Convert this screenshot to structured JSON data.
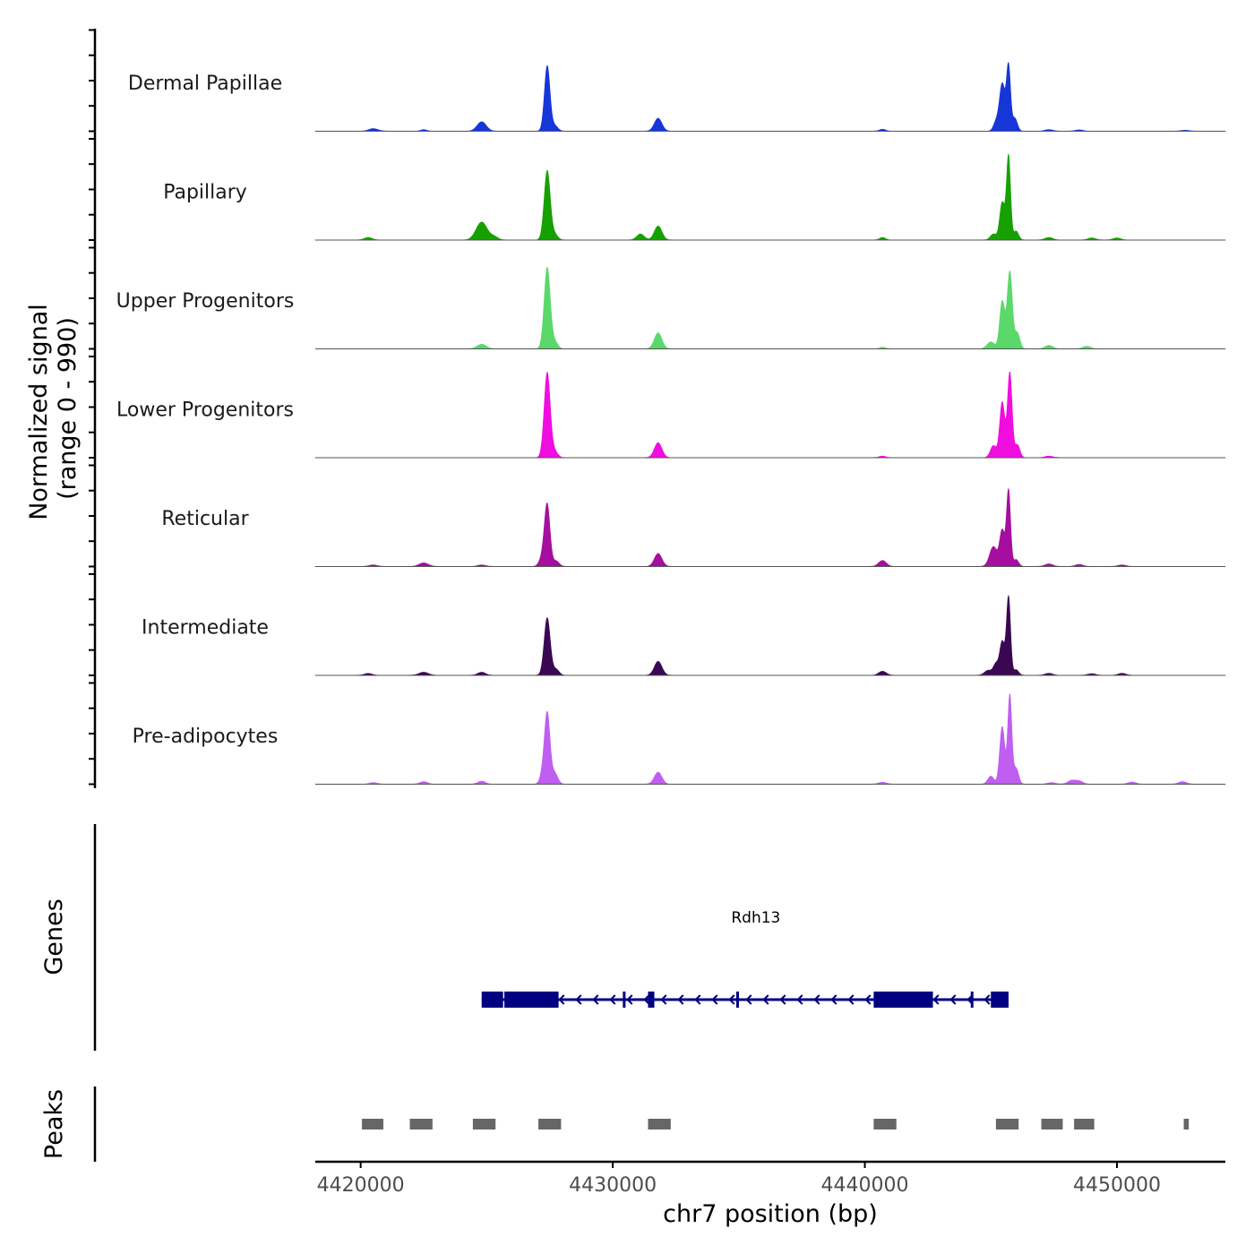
{
  "chart_data": {
    "type": "area",
    "title": "",
    "chromosome": "chr7",
    "xlabel": "chr7 position (bp)",
    "ylabel_line1": "Normalized signal",
    "ylabel_line2": "(range 0 - 990)",
    "xlim": [
      4418200,
      4454300
    ],
    "ylim": [
      0,
      990
    ],
    "x_ticks": [
      4420000,
      4430000,
      4440000,
      4450000
    ],
    "x_tick_labels": [
      "4420000",
      "4430000",
      "4440000",
      "4450000"
    ],
    "series": [
      {
        "name": "Dermal Papillae",
        "color": "#1736d8",
        "peaks": [
          [
            4420500,
            25,
            180
          ],
          [
            4422500,
            15,
            120
          ],
          [
            4424800,
            95,
            180
          ],
          [
            4427400,
            660,
            110
          ],
          [
            4427700,
            55,
            120
          ],
          [
            4431800,
            130,
            150
          ],
          [
            4440700,
            18,
            120
          ],
          [
            4445200,
            90,
            100
          ],
          [
            4445450,
            480,
            110
          ],
          [
            4445700,
            650,
            80
          ],
          [
            4445950,
            130,
            100
          ],
          [
            4447300,
            15,
            150
          ],
          [
            4448500,
            12,
            150
          ],
          [
            4452700,
            8,
            150
          ]
        ]
      },
      {
        "name": "Papillary",
        "color": "#17a100",
        "peaks": [
          [
            4420300,
            25,
            150
          ],
          [
            4424800,
            180,
            220
          ],
          [
            4425300,
            30,
            150
          ],
          [
            4427400,
            700,
            120
          ],
          [
            4427700,
            55,
            120
          ],
          [
            4431100,
            60,
            150
          ],
          [
            4431800,
            140,
            150
          ],
          [
            4440700,
            25,
            120
          ],
          [
            4445100,
            60,
            120
          ],
          [
            4445450,
            380,
            100
          ],
          [
            4445700,
            850,
            80
          ],
          [
            4446000,
            90,
            100
          ],
          [
            4447300,
            25,
            150
          ],
          [
            4449000,
            20,
            150
          ],
          [
            4450000,
            20,
            150
          ]
        ]
      },
      {
        "name": "Upper Progenitors",
        "color": "#5bd86a",
        "peaks": [
          [
            4424800,
            45,
            180
          ],
          [
            4427400,
            820,
            120
          ],
          [
            4427700,
            70,
            120
          ],
          [
            4431800,
            160,
            150
          ],
          [
            4440700,
            15,
            120
          ],
          [
            4445000,
            70,
            150
          ],
          [
            4445450,
            480,
            100
          ],
          [
            4445750,
            780,
            100
          ],
          [
            4446050,
            160,
            100
          ],
          [
            4447300,
            35,
            150
          ],
          [
            4448800,
            25,
            150
          ]
        ]
      },
      {
        "name": "Lower Progenitors",
        "color": "#f00ddf",
        "peaks": [
          [
            4427400,
            860,
            120
          ],
          [
            4427700,
            60,
            120
          ],
          [
            4431800,
            150,
            150
          ],
          [
            4440700,
            15,
            120
          ],
          [
            4445100,
            120,
            120
          ],
          [
            4445450,
            560,
            100
          ],
          [
            4445750,
            860,
            90
          ],
          [
            4446050,
            130,
            100
          ],
          [
            4447300,
            15,
            150
          ]
        ]
      },
      {
        "name": "Reticular",
        "color": "#a50e9e",
        "peaks": [
          [
            4420500,
            15,
            150
          ],
          [
            4422500,
            35,
            180
          ],
          [
            4424800,
            15,
            150
          ],
          [
            4427200,
            80,
            120
          ],
          [
            4427400,
            620,
            110
          ],
          [
            4427750,
            55,
            120
          ],
          [
            4431800,
            130,
            150
          ],
          [
            4440700,
            60,
            150
          ],
          [
            4445100,
            200,
            150
          ],
          [
            4445450,
            360,
            100
          ],
          [
            4445700,
            770,
            80
          ],
          [
            4446000,
            70,
            100
          ],
          [
            4447300,
            25,
            150
          ],
          [
            4448500,
            20,
            150
          ],
          [
            4450200,
            15,
            150
          ]
        ]
      },
      {
        "name": "Intermediate",
        "color": "#3a0853",
        "peaks": [
          [
            4420300,
            18,
            150
          ],
          [
            4422500,
            30,
            180
          ],
          [
            4424800,
            30,
            150
          ],
          [
            4427400,
            580,
            120
          ],
          [
            4427750,
            60,
            120
          ],
          [
            4431800,
            140,
            150
          ],
          [
            4440700,
            40,
            150
          ],
          [
            4444900,
            50,
            150
          ],
          [
            4445200,
            110,
            100
          ],
          [
            4445450,
            340,
            100
          ],
          [
            4445700,
            790,
            80
          ],
          [
            4446000,
            55,
            100
          ],
          [
            4447300,
            20,
            150
          ],
          [
            4449000,
            15,
            150
          ],
          [
            4450200,
            20,
            150
          ]
        ]
      },
      {
        "name": "Pre-adipocytes",
        "color": "#bf5ef0",
        "peaks": [
          [
            4420500,
            15,
            150
          ],
          [
            4422500,
            25,
            150
          ],
          [
            4424800,
            30,
            150
          ],
          [
            4427200,
            80,
            100
          ],
          [
            4427400,
            720,
            110
          ],
          [
            4427700,
            110,
            120
          ],
          [
            4431800,
            120,
            150
          ],
          [
            4440700,
            18,
            150
          ],
          [
            4445000,
            80,
            120
          ],
          [
            4445450,
            580,
            100
          ],
          [
            4445750,
            900,
            80
          ],
          [
            4446000,
            160,
            100
          ],
          [
            4447400,
            15,
            150
          ],
          [
            4448200,
            35,
            150
          ],
          [
            4448500,
            30,
            150
          ],
          [
            4450600,
            20,
            150
          ],
          [
            4452600,
            25,
            150
          ]
        ]
      }
    ],
    "genes": [
      {
        "name": "Rdh13",
        "start": 4424800,
        "end": 4445700,
        "strand": "-",
        "color": "#000080",
        "exons": [
          [
            4424800,
            4425650
          ],
          [
            4425700,
            4427850
          ],
          [
            4430400,
            4430450
          ],
          [
            4431400,
            4431650
          ],
          [
            4434900,
            4434950
          ],
          [
            4440350,
            4442700
          ],
          [
            4444200,
            4444250
          ],
          [
            4445000,
            4445700
          ]
        ]
      }
    ],
    "peaks_track": [
      [
        4420050,
        4420900
      ],
      [
        4421950,
        4422850
      ],
      [
        4424450,
        4425350
      ],
      [
        4427050,
        4427950
      ],
      [
        4431400,
        4432300
      ],
      [
        4440350,
        4441250
      ],
      [
        4445200,
        4446100
      ],
      [
        4447000,
        4447850
      ],
      [
        4448300,
        4449100
      ],
      [
        4452650,
        4452850
      ]
    ],
    "track_labels": {
      "genes": "Genes",
      "peaks": "Peaks"
    }
  }
}
